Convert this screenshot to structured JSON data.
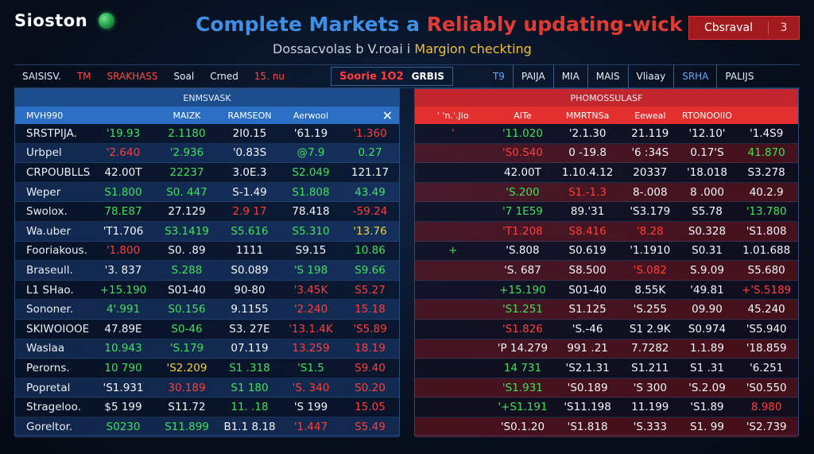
{
  "brand": {
    "name": "Sioston",
    "icon": "globe-icon"
  },
  "headline": {
    "part1": "Complete Markets a",
    "part2": "Reliably",
    "part3": " updating-wick"
  },
  "subhead": {
    "part1": "Dossacvolas b V.roai i",
    "part2": "Margion checkting"
  },
  "top_button": {
    "label": "Cbsraval",
    "count": "3"
  },
  "toolbar": {
    "tabs_left": [
      "SAISISV.",
      "TM",
      "SRAKHASS",
      "Soal",
      "Crned",
      "15. nu"
    ],
    "status_a": "Soorie 1O2",
    "status_b": "GRBIS",
    "tabs_right": [
      "T9",
      "PAIJA",
      "MIA",
      "MAIS",
      "Vliaay",
      "SRHA",
      "PALIJS"
    ]
  },
  "left_panel": {
    "title": "ENMSVASK",
    "headers": [
      "MVH990",
      "",
      "MAIZK",
      "RAMSEON",
      "Aerwool",
      ""
    ],
    "rows": [
      [
        "SRSTPIJA.",
        "'19.93",
        "2.1180",
        "2I0.15",
        "'61.19",
        "'1.360"
      ],
      [
        "Urbpel",
        "'2.640",
        "'2.936",
        "'0.83S",
        "@7.9",
        "0.27"
      ],
      [
        "CRPOUBLLS.",
        "42.00T",
        "22237",
        "3.0E.3",
        "S2.049",
        "121.17"
      ],
      [
        "Weper",
        "S1.800",
        "S0. 447",
        "S-1.49",
        "S1.808",
        "43.49"
      ],
      [
        "Swolox.",
        "78.E87",
        "27.129",
        "2.9 17",
        "78.418",
        "-59.24"
      ],
      [
        "Wa.uber",
        "'T1.706",
        "S3.1419",
        "S5.616",
        "S5.310",
        "'13.76"
      ],
      [
        "Fooriakous.",
        "'1.800",
        "S0. .89",
        "1111",
        "S9.15",
        "10.86"
      ],
      [
        "Braseull.",
        "'3. 837",
        "S.288",
        "S0.089",
        "'S 198",
        "S9.66"
      ],
      [
        "L1 SHao.",
        "+15.190",
        "S01-40",
        "90-80",
        "'3.45K",
        "S5.27"
      ],
      [
        "Sononer.",
        "4'.991",
        "S0.156",
        "9.1155",
        "'2.240",
        "15.18"
      ],
      [
        "SKIWOIOOE",
        "47.89E",
        "S0-46",
        "S3. 27E",
        "'13.1.4K",
        "'S5.89"
      ],
      [
        "Waslaa",
        "10.943",
        "'S.179",
        "07.119",
        "13.259",
        "18.19"
      ],
      [
        "Perorns.",
        "10 790",
        "'S2.209",
        "S1 .318",
        "'S1.5",
        "S9.40"
      ],
      [
        "Popretal",
        "'S1.931",
        "30.189",
        "S1 180",
        "'S. 340",
        "S0.20"
      ],
      [
        "Strageloo.",
        "$5 199",
        "S11.72",
        "11. .18",
        "'S 199",
        "15.05"
      ],
      [
        "Goreltor.",
        "S0230",
        "S11.899",
        "B1.1 8.18",
        "'1.447",
        "S5.49"
      ]
    ]
  },
  "right_panel": {
    "title": "PHOMOSSULASF",
    "headers": [
      "' 'n.'.Jio",
      "AITe",
      "MMRTNSa",
      "Eeweal",
      "RTONOOIIO",
      ""
    ],
    "rows": [
      [
        "'",
        "'11.020",
        "'2.1.30",
        "21.119",
        "'12.10'",
        "'1.4S9"
      ],
      [
        "",
        "'S0.S40",
        "0 -19.8",
        "'6 :34S",
        "0.17'S",
        "41.870"
      ],
      [
        "",
        "42.00T",
        "1.10.4.12",
        "20337",
        "'18.018",
        "S3.278"
      ],
      [
        "",
        "'S.200",
        "S1.-1.3",
        "8-.008",
        "8 .000",
        "40.2.9"
      ],
      [
        "",
        "'7 1E59",
        "89.'31",
        "'S3.179",
        "S5.78",
        "'13.780"
      ],
      [
        "",
        "'T1.208",
        "S8.416",
        "'8.28",
        "S0.328",
        "'S1.808"
      ],
      [
        "+",
        "'S.808",
        "S0.619",
        "'1.1910",
        "S0.31",
        "1.01.688"
      ],
      [
        "",
        "'S. 687",
        "S8.500",
        "'S.082",
        "S.9.09",
        "S5.680"
      ],
      [
        "",
        "+15.190",
        "S01-40",
        "8.55K",
        "'49.81",
        "+'S.5189"
      ],
      [
        "",
        "'S1.251",
        "S1.125",
        "'S.255",
        "09.90",
        "45.240"
      ],
      [
        "",
        "'S1.826",
        "'S.-46",
        "S1 2.9K",
        "S0.974",
        "'S5.940"
      ],
      [
        "",
        "'P 14.279",
        "991 .21",
        "7.7282",
        "1.1.89",
        "'18.859"
      ],
      [
        "",
        "14 731",
        "'S2.1.31",
        "S1.211",
        "S1 .31",
        "'6.251"
      ],
      [
        "",
        "'S1.931",
        "'S0.189",
        "'S 300",
        "'S.2.09",
        "'S0.550"
      ],
      [
        "",
        "'+S1.191",
        "'S11.198",
        "11.199",
        "'S1.89",
        "8.980"
      ],
      [
        "",
        "'S0.1.20",
        "'S1.818",
        "'S.333",
        "S1. 99",
        "'S2.739"
      ]
    ]
  },
  "colors": {
    "green": "#40e05a",
    "red": "#ff3f3a",
    "blue_header": "#2a6fc4",
    "red_header": "#e3302f"
  }
}
